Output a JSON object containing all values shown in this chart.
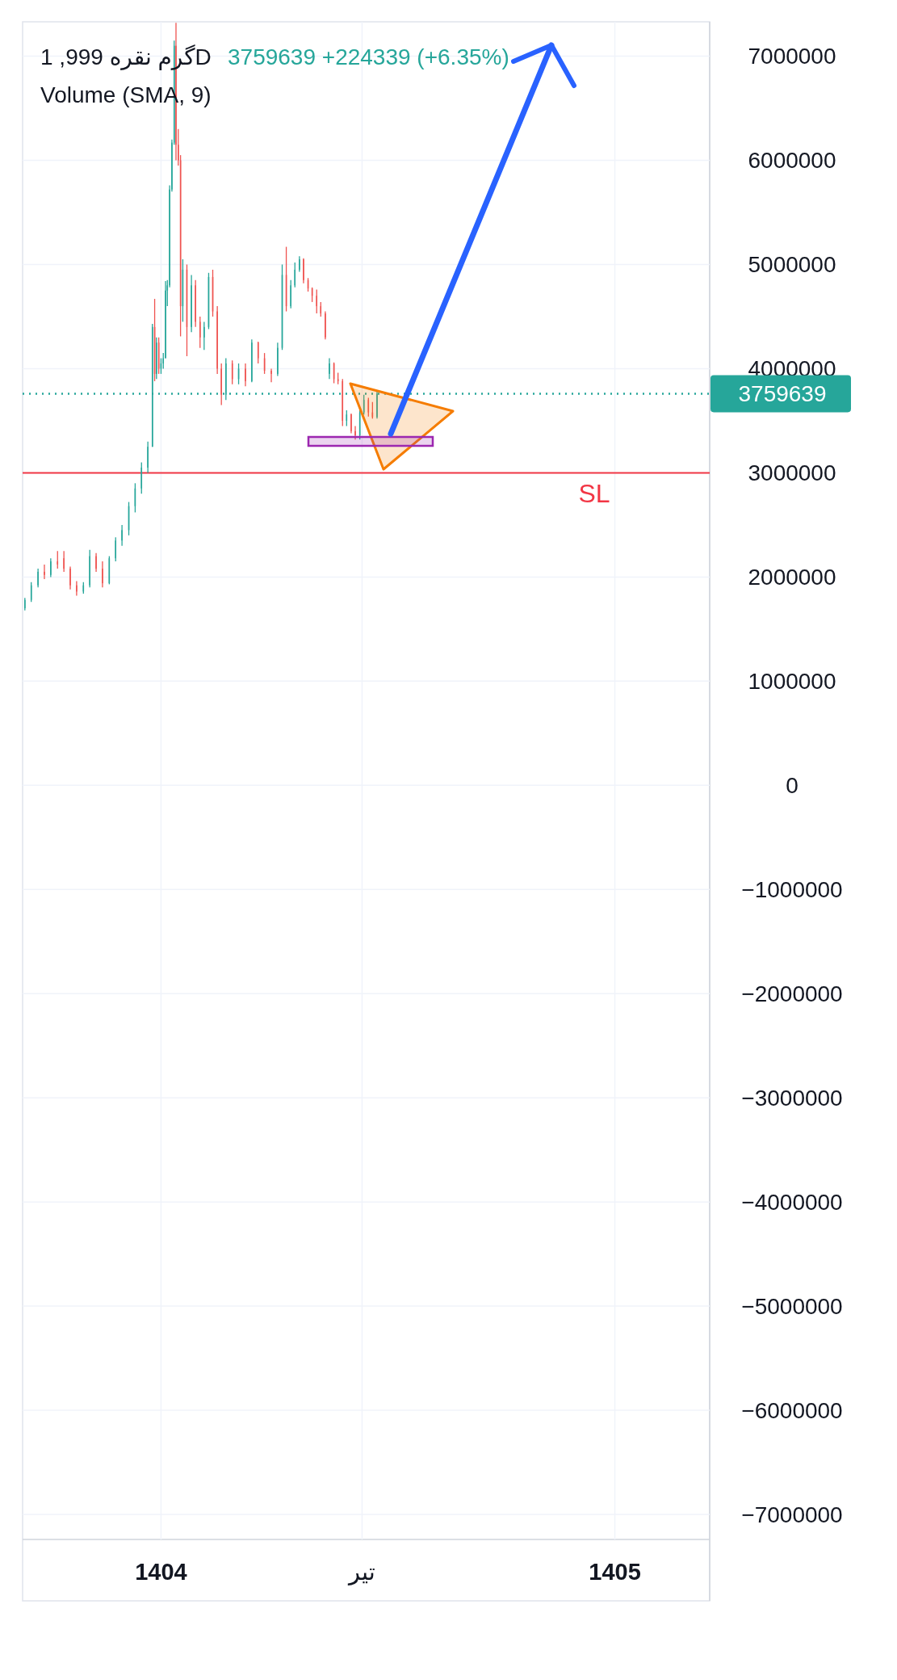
{
  "chart_data": {
    "type": "candlestick",
    "title": "گرم نقره 999, 1D",
    "subtitle": "3759639  +224339 (+6.35%)",
    "annotations": [
      "Volume (SMA, 9)"
    ],
    "x": [
      1403.7,
      1403.714,
      1403.729,
      1403.743,
      1403.757,
      1403.772,
      1403.786,
      1403.8,
      1403.814,
      1403.829,
      1403.843,
      1403.857,
      1403.871,
      1403.886,
      1403.9,
      1403.914,
      1403.929,
      1403.943,
      1403.957,
      1403.971,
      1403.981,
      1403.986,
      1403.99,
      1403.995,
      1404.0,
      1404.005,
      1404.01,
      1404.014,
      1404.019,
      1404.024,
      1404.029,
      1404.033,
      1404.038,
      1404.043,
      1404.048,
      1404.057,
      1404.067,
      1404.076,
      1404.086,
      1404.095,
      1404.105,
      1404.114,
      1404.124,
      1404.133,
      1404.143,
      1404.157,
      1404.171,
      1404.186,
      1404.2,
      1404.214,
      1404.228,
      1404.243,
      1404.257,
      1404.267,
      1404.276,
      1404.286,
      1404.295,
      1404.305,
      1404.314,
      1404.324,
      1404.333,
      1404.343,
      1404.352,
      1404.362,
      1404.371,
      1404.381,
      1404.39,
      1404.4,
      1404.409,
      1404.419,
      1404.428,
      1404.438,
      1404.447,
      1404.457,
      1404.466,
      1404.476
    ],
    "ohlc": [
      [
        1700000,
        1800000,
        1680000,
        1780000
      ],
      [
        1780000,
        1950000,
        1760000,
        1920000
      ],
      [
        1920000,
        2080000,
        1900000,
        2050000
      ],
      [
        2050000,
        2120000,
        1980000,
        2020000
      ],
      [
        2020000,
        2180000,
        2000000,
        2150000
      ],
      [
        2150000,
        2250000,
        2080000,
        2120000
      ],
      [
        2180000,
        2250000,
        2050000,
        2080000
      ],
      [
        2080000,
        2100000,
        1880000,
        1920000
      ],
      [
        1920000,
        1960000,
        1820000,
        1860000
      ],
      [
        1860000,
        1950000,
        1840000,
        1920000
      ],
      [
        1920000,
        2260000,
        1900000,
        2200000
      ],
      [
        2200000,
        2230000,
        2050000,
        2080000
      ],
      [
        2080000,
        2150000,
        1900000,
        1940000
      ],
      [
        1940000,
        2200000,
        1930000,
        2180000
      ],
      [
        2180000,
        2380000,
        2150000,
        2350000
      ],
      [
        2350000,
        2500000,
        2300000,
        2450000
      ],
      [
        2450000,
        2720000,
        2400000,
        2680000
      ],
      [
        2680000,
        2900000,
        2620000,
        2850000
      ],
      [
        2850000,
        3100000,
        2800000,
        3050000
      ],
      [
        3050000,
        3300000,
        3000000,
        3250000
      ],
      [
        3250000,
        4430000,
        3250000,
        4400000
      ],
      [
        4400000,
        4670000,
        3880000,
        3950000
      ],
      [
        3950000,
        4300000,
        3900000,
        4250000
      ],
      [
        4250000,
        4300000,
        3950000,
        4000000
      ],
      [
        4000000,
        4100000,
        3950000,
        4050000
      ],
      [
        4050000,
        4150000,
        4000000,
        4100000
      ],
      [
        4100000,
        4840000,
        4100000,
        4750000
      ],
      [
        4750000,
        4850000,
        4600000,
        4800000
      ],
      [
        4800000,
        5760000,
        4780000,
        5720000
      ],
      [
        5720000,
        6200000,
        5700000,
        6170000
      ],
      [
        6170000,
        7150000,
        6150000,
        7100000
      ],
      [
        7100000,
        7320000,
        6000000,
        6150000
      ],
      [
        6150000,
        6300000,
        5950000,
        6000000
      ],
      [
        6000000,
        6050000,
        4310000,
        4600000
      ],
      [
        4600000,
        5050000,
        4450000,
        4950000
      ],
      [
        4950000,
        5000000,
        4120000,
        4400000
      ],
      [
        4400000,
        4900000,
        4350000,
        4800000
      ],
      [
        4800000,
        4850000,
        4400000,
        4450000
      ],
      [
        4450000,
        4500000,
        4200000,
        4300000
      ],
      [
        4300000,
        4450000,
        4180000,
        4400000
      ],
      [
        4400000,
        4920000,
        4380000,
        4880000
      ],
      [
        4880000,
        4950000,
        4500000,
        4550000
      ],
      [
        4550000,
        4600000,
        3950000,
        4000000
      ],
      [
        4000000,
        4050000,
        3650000,
        3750000
      ],
      [
        3750000,
        4100000,
        3700000,
        4050000
      ],
      [
        4050000,
        4080000,
        3850000,
        3900000
      ],
      [
        3900000,
        4050000,
        3850000,
        4000000
      ],
      [
        4000000,
        4050000,
        3830000,
        3880000
      ],
      [
        3880000,
        4280000,
        3870000,
        4250000
      ],
      [
        4250000,
        4260000,
        4050000,
        4100000
      ],
      [
        4100000,
        4150000,
        3950000,
        3980000
      ],
      [
        3980000,
        4000000,
        3870000,
        3950000
      ],
      [
        3950000,
        4250000,
        3930000,
        4200000
      ],
      [
        4200000,
        5000000,
        4180000,
        4900000
      ],
      [
        4900000,
        5170000,
        4550000,
        4600000
      ],
      [
        4600000,
        4850000,
        4580000,
        4800000
      ],
      [
        4800000,
        5020000,
        4780000,
        4950000
      ],
      [
        4950000,
        5080000,
        4930000,
        5050000
      ],
      [
        5050000,
        5060000,
        4820000,
        4850000
      ],
      [
        4850000,
        4870000,
        4740000,
        4770000
      ],
      [
        4770000,
        4780000,
        4640000,
        4700000
      ],
      [
        4700000,
        4760000,
        4530000,
        4600000
      ],
      [
        4600000,
        4640000,
        4500000,
        4530000
      ],
      [
        4530000,
        4550000,
        4280000,
        4300000
      ],
      [
        3950000,
        4100000,
        3900000,
        4050000
      ],
      [
        4050000,
        4060000,
        3860000,
        3900000
      ],
      [
        3900000,
        3960000,
        3850000,
        3880000
      ],
      [
        3880000,
        3900000,
        3450000,
        3500000
      ],
      [
        3500000,
        3600000,
        3450000,
        3560000
      ],
      [
        3560000,
        3570000,
        3380000,
        3400000
      ],
      [
        3400000,
        3450000,
        3320000,
        3360000
      ],
      [
        3360000,
        3620000,
        3320000,
        3580000
      ],
      [
        3580000,
        3750000,
        3560000,
        3700000
      ],
      [
        3700000,
        3720000,
        3540000,
        3580000
      ],
      [
        3580000,
        3680000,
        3520000,
        3535300
      ],
      [
        3535300,
        3780000,
        3520000,
        3759639
      ]
    ],
    "colors": [
      "#26a69a",
      "#26a69a",
      "#26a69a",
      "#ef5350",
      "#26a69a",
      "#ef5350",
      "#ef5350",
      "#ef5350",
      "#ef5350",
      "#26a69a",
      "#26a69a",
      "#ef5350",
      "#ef5350",
      "#26a69a",
      "#26a69a",
      "#26a69a",
      "#26a69a",
      "#26a69a",
      "#26a69a",
      "#26a69a",
      "#26a69a",
      "#ef5350",
      "#26a69a",
      "#ef5350",
      "#26a69a",
      "#26a69a",
      "#26a69a",
      "#26a69a",
      "#26a69a",
      "#26a69a",
      "#26a69a",
      "#ef5350",
      "#ef5350",
      "#ef5350",
      "#26a69a",
      "#ef5350",
      "#26a69a",
      "#ef5350",
      "#ef5350",
      "#26a69a",
      "#26a69a",
      "#ef5350",
      "#ef5350",
      "#ef5350",
      "#26a69a",
      "#ef5350",
      "#26a69a",
      "#ef5350",
      "#26a69a",
      "#ef5350",
      "#ef5350",
      "#ef5350",
      "#26a69a",
      "#26a69a",
      "#ef5350",
      "#26a69a",
      "#26a69a",
      "#26a69a",
      "#ef5350",
      "#ef5350",
      "#ef5350",
      "#ef5350",
      "#ef5350",
      "#ef5350",
      "#26a69a",
      "#ef5350",
      "#ef5350",
      "#ef5350",
      "#26a69a",
      "#ef5350",
      "#ef5350",
      "#26a69a",
      "#26a69a",
      "#ef5350",
      "#ef5350",
      "#26a69a"
    ],
    "xlim": [
      1403.695,
      1405.209
    ],
    "xticks": [
      1404,
      {
        "value": 1404.443,
        "label": "تیر"
      },
      1405
    ],
    "ylim": [
      -7240000,
      7330000
    ],
    "yticks": [
      {
        "value": -7000000,
        "label": "−7000000"
      },
      {
        "value": -6000000,
        "label": "−6000000"
      },
      {
        "value": -5000000,
        "label": "−5000000"
      },
      {
        "value": -4000000,
        "label": "−4000000"
      },
      {
        "value": -3000000,
        "label": "−3000000"
      },
      {
        "value": -2000000,
        "label": "−2000000"
      },
      {
        "value": -1000000,
        "label": "−1000000"
      },
      0,
      1000000,
      2000000,
      3000000,
      4000000,
      5000000,
      6000000,
      7000000
    ],
    "ref_lines": [
      {
        "axis": "y",
        "value": 3000000,
        "label": "SL",
        "color": "#f23645",
        "line_style": "solid"
      },
      {
        "axis": "y",
        "value": 3759639,
        "label": "3759639",
        "color": "#26a69a",
        "line_style": "dotted"
      }
    ],
    "grid": true
  }
}
